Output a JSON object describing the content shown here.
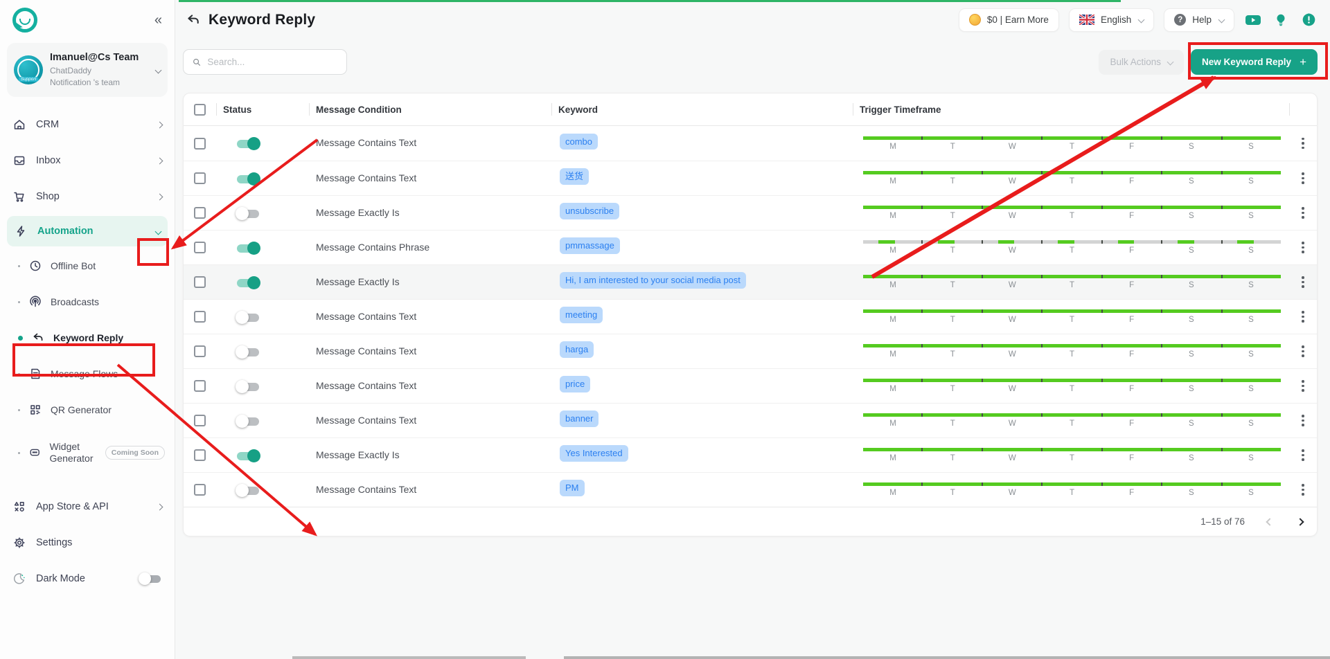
{
  "brand": {
    "accent": "#17a287",
    "timeframe_green": "#55cb20",
    "chip_bg": "#bad9fc",
    "chip_text": "#2c80f0",
    "annotation_red": "#e81c1c"
  },
  "sidebar": {
    "collapse_glyph": "«",
    "user": {
      "name": "Imanuel@Cs Team",
      "org": "ChatDaddy",
      "team": "Notification 's team"
    },
    "items": [
      {
        "label": "CRM"
      },
      {
        "label": "Inbox"
      },
      {
        "label": "Shop"
      },
      {
        "label": "Automation"
      }
    ],
    "automation_children": [
      {
        "label": "Offline Bot"
      },
      {
        "label": "Broadcasts"
      },
      {
        "label": "Keyword Reply"
      },
      {
        "label": "Message Flows"
      },
      {
        "label": "QR Generator"
      },
      {
        "label": "Widget Generator",
        "badge": "Coming Soon"
      }
    ],
    "footer": {
      "app_store": "App Store & API",
      "settings": "Settings",
      "dark_mode": "Dark Mode"
    }
  },
  "header": {
    "title": "Keyword Reply",
    "wallet": "$0 | Earn More",
    "language": "English",
    "help": "Help"
  },
  "toolbar": {
    "search_placeholder": "Search...",
    "bulk_actions": "Bulk Actions",
    "new_keyword_reply": "New Keyword Reply",
    "plus": "+"
  },
  "table": {
    "columns": [
      "Status",
      "Message Condition",
      "Keyword",
      "Trigger Timeframe"
    ],
    "days": [
      "M",
      "T",
      "W",
      "T",
      "F",
      "S",
      "S"
    ],
    "rows": [
      {
        "enabled": true,
        "condition": "Message Contains Text",
        "keyword": "combo",
        "timeframe": "full",
        "highlighted": false
      },
      {
        "enabled": true,
        "condition": "Message Contains Text",
        "keyword": "送货",
        "timeframe": "full",
        "highlighted": false
      },
      {
        "enabled": false,
        "condition": "Message Exactly Is",
        "keyword": "unsubscribe",
        "timeframe": "full",
        "highlighted": false
      },
      {
        "enabled": true,
        "condition": "Message Contains Phrase",
        "keyword": "pmmassage",
        "timeframe": "partial",
        "highlighted": false
      },
      {
        "enabled": true,
        "condition": "Message Exactly Is",
        "keyword": "Hi, I am interested to your social media post",
        "timeframe": "full",
        "highlighted": true
      },
      {
        "enabled": false,
        "condition": "Message Contains Text",
        "keyword": "meeting",
        "timeframe": "full",
        "highlighted": false
      },
      {
        "enabled": false,
        "condition": "Message Contains Text",
        "keyword": "harga",
        "timeframe": "full",
        "highlighted": false
      },
      {
        "enabled": false,
        "condition": "Message Contains Text",
        "keyword": "price",
        "timeframe": "full",
        "highlighted": false
      },
      {
        "enabled": false,
        "condition": "Message Contains Text",
        "keyword": "banner",
        "timeframe": "full",
        "highlighted": false
      },
      {
        "enabled": true,
        "condition": "Message Exactly Is",
        "keyword": "Yes Interested",
        "timeframe": "full",
        "highlighted": false
      },
      {
        "enabled": false,
        "condition": "Message Contains Text",
        "keyword": "PM",
        "timeframe": "full",
        "highlighted": false
      }
    ]
  },
  "pagination": {
    "range": "1–15 of 76"
  }
}
